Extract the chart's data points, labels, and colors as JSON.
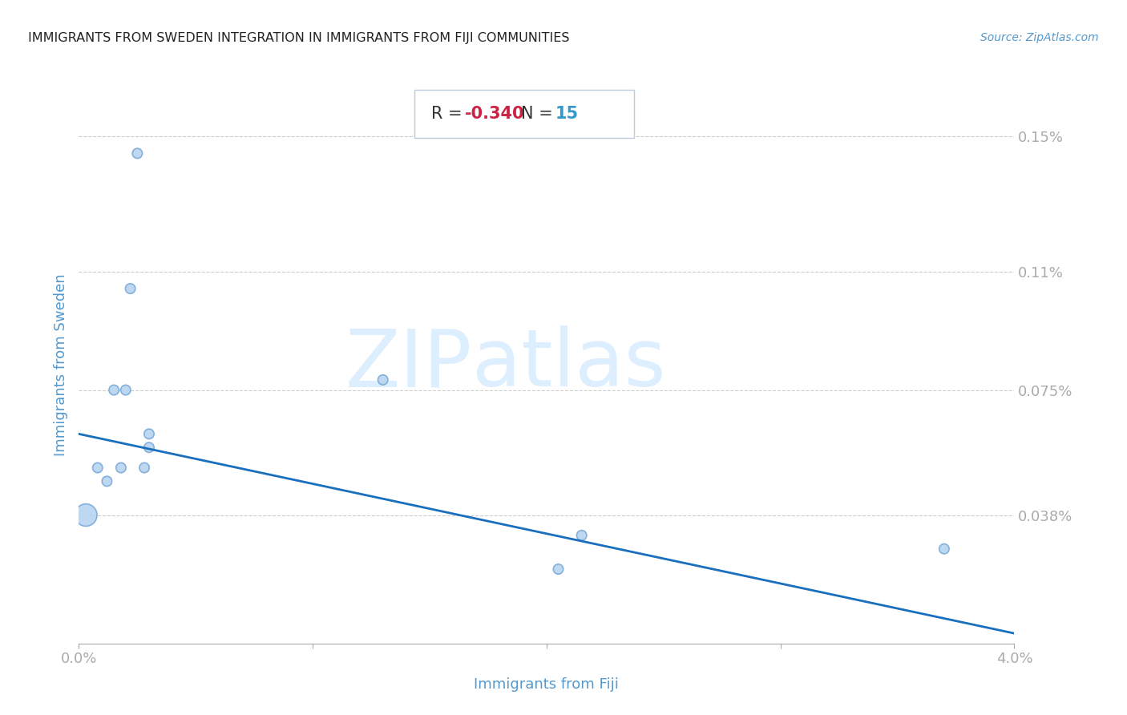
{
  "title": "IMMIGRANTS FROM SWEDEN INTEGRATION IN IMMIGRANTS FROM FIJI COMMUNITIES",
  "source": "Source: ZipAtlas.com",
  "xlabel": "Immigrants from Fiji",
  "ylabel": "Immigrants from Sweden",
  "R": -0.34,
  "N": 15,
  "xlim": [
    0.0,
    0.04
  ],
  "ylim": [
    0.0,
    0.00165
  ],
  "xticks": [
    0.0,
    0.01,
    0.02,
    0.03,
    0.04
  ],
  "xtick_labels": [
    "0.0%",
    "",
    "",
    "",
    "4.0%"
  ],
  "ytick_positions": [
    0.00038,
    0.00075,
    0.0011,
    0.0015
  ],
  "ytick_labels": [
    "0.038%",
    "0.075%",
    "0.11%",
    "0.15%"
  ],
  "scatter_x": [
    0.0003,
    0.0008,
    0.0012,
    0.0015,
    0.0018,
    0.002,
    0.0022,
    0.0025,
    0.0028,
    0.003,
    0.003,
    0.013,
    0.0205,
    0.0215,
    0.037
  ],
  "scatter_y": [
    0.00038,
    0.00052,
    0.00048,
    0.00075,
    0.00052,
    0.00075,
    0.00105,
    0.00145,
    0.00052,
    0.00058,
    0.00062,
    0.00078,
    0.00022,
    0.00032,
    0.00028
  ],
  "scatter_sizes": [
    400,
    80,
    80,
    80,
    80,
    80,
    80,
    80,
    80,
    80,
    80,
    80,
    80,
    80,
    80
  ],
  "scatter_color": "#b8d4f0",
  "scatter_edge_color": "#7aaad8",
  "regression_color": "#1a6fbd",
  "regression_x_start": 0.0,
  "regression_x_end": 0.04,
  "regression_y_start": 0.00062,
  "regression_y_end": 3e-05,
  "title_color": "#222222",
  "title_fontsize": 11.5,
  "source_color": "#5599cc",
  "axis_label_color": "#5599cc",
  "tick_label_color": "#5599cc",
  "axis_label_fontsize": 13,
  "tick_fontsize": 13,
  "watermark_zip": "ZIP",
  "watermark_atlas": "atlas",
  "watermark_color": "#ddeeff",
  "background_color": "#ffffff",
  "grid_color": "#cccccc",
  "stats_box_facecolor": "#ffffff",
  "stats_border_color": "#bbccdd",
  "R_label_color": "#333333",
  "R_value_color": "#cc2244",
  "N_label_color": "#333333",
  "N_value_color": "#3399cc",
  "stats_fontsize": 15
}
